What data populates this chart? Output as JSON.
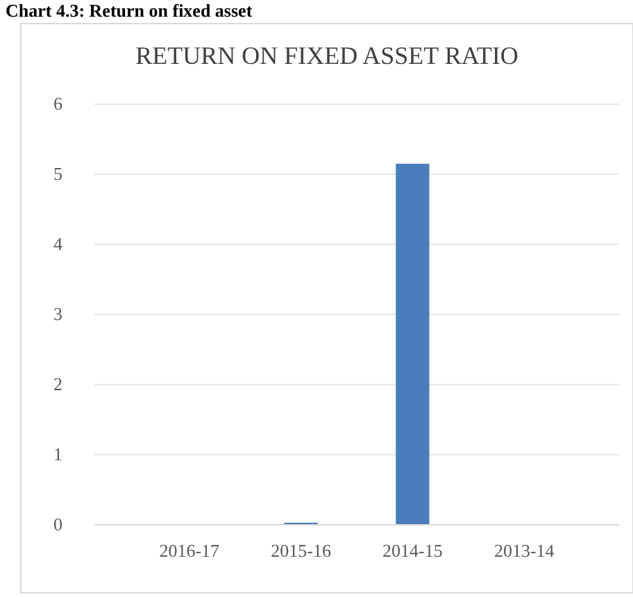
{
  "chart_data": {
    "type": "bar",
    "title": "RETURN ON FIXED ASSET RATIO",
    "annotations": [
      "Chart 4.3: Return on fixed asset"
    ],
    "categories": [
      "2016-17",
      "2015-16",
      "2014-15",
      "2013-14"
    ],
    "values": [
      0,
      0.03,
      5.15,
      0
    ],
    "color": "#4a7ebb",
    "ylim": [
      0,
      6
    ],
    "yticks": [
      0,
      1,
      2,
      3,
      4,
      5,
      6
    ],
    "grid": "y"
  }
}
